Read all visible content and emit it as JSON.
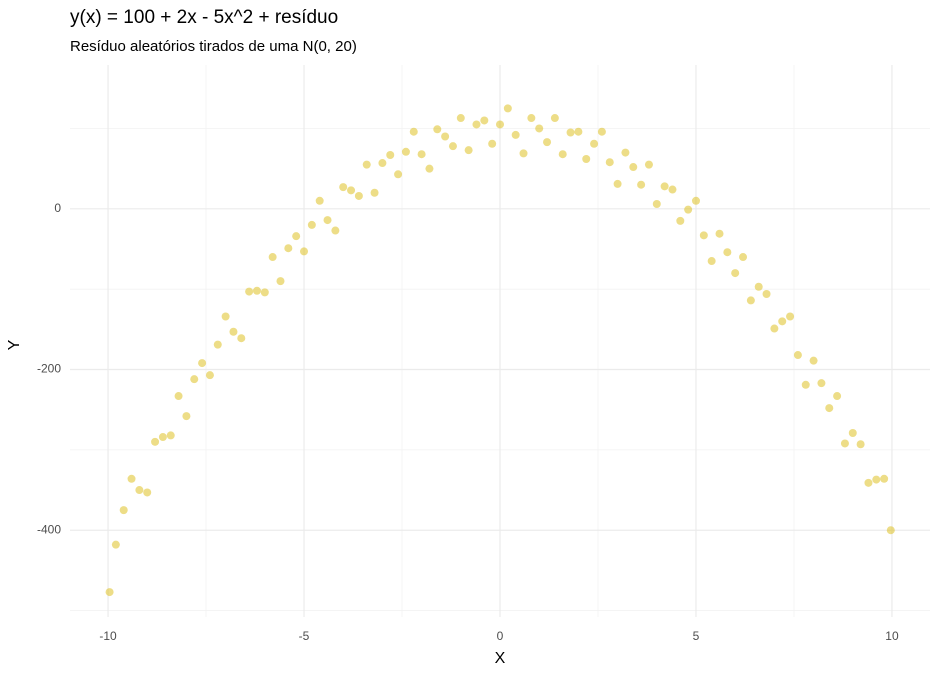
{
  "chart_data": {
    "type": "scatter",
    "title": "y(x) = 100 + 2x - 5x^2 + resíduo",
    "subtitle": "Resíduo aleatórios tirados de uma N(0, 20)",
    "x_label": "X",
    "y_label": "Y",
    "color": "#dbbb10",
    "xlim": [
      -10.97,
      10.97
    ],
    "ylim": [
      -508,
      179
    ],
    "xticks": [
      -10,
      -5,
      0,
      5,
      10
    ],
    "yticks": [
      -400,
      -200,
      0
    ],
    "x_minor_grid": [
      -7.5,
      -2.5,
      2.5,
      7.5
    ],
    "y_minor_grid": [
      -500,
      -300,
      -100,
      100
    ],
    "grid": true,
    "x": [
      -9.96,
      -9.8,
      -9.6,
      -9.4,
      -9.2,
      -9.0,
      -8.8,
      -8.6,
      -8.4,
      -8.2,
      -8.0,
      -7.8,
      -7.6,
      -7.4,
      -7.2,
      -7.0,
      -6.8,
      -6.6,
      -6.4,
      -6.2,
      -6.0,
      -5.8,
      -5.6,
      -5.4,
      -5.2,
      -5.0,
      -4.8,
      -4.6,
      -4.4,
      -4.2,
      -4.0,
      -3.8,
      -3.6,
      -3.4,
      -3.2,
      -3.0,
      -2.8,
      -2.6,
      -2.4,
      -2.2,
      -2.0,
      -1.8,
      -1.6,
      -1.4,
      -1.2,
      -1.0,
      -0.8,
      -0.6,
      -0.4,
      -0.2,
      0,
      0.2,
      0.4,
      0.6,
      0.8,
      1.0,
      1.2,
      1.4,
      1.6,
      1.8,
      2.0,
      2.2,
      2.4,
      2.6,
      2.8,
      3.0,
      3.2,
      3.4,
      3.6,
      3.8,
      4.0,
      4.2,
      4.4,
      4.6,
      4.8,
      5.0,
      5.2,
      5.4,
      5.6,
      5.8,
      6.0,
      6.2,
      6.4,
      6.6,
      6.8,
      7.0,
      7.2,
      7.4,
      7.6,
      7.8,
      8.0,
      8.2,
      8.4,
      8.6,
      8.8,
      9.0,
      9.2,
      9.4,
      9.6,
      9.8,
      9.97
    ],
    "values": [
      -477,
      -418,
      -375,
      -336,
      -350,
      -353,
      -290,
      -284,
      -282,
      -233,
      -258,
      -212,
      -192,
      -207,
      -169,
      -134,
      -153,
      -161,
      -103,
      -102,
      -104,
      -60,
      -90,
      -49,
      -34,
      -53,
      -20,
      10,
      -14,
      -27,
      27,
      23,
      16,
      55,
      20,
      57,
      67,
      43,
      71,
      96,
      68,
      50,
      99,
      90,
      78,
      113,
      73,
      105,
      110,
      81,
      105,
      125,
      92,
      69,
      113,
      100,
      83,
      113,
      68,
      95,
      96,
      62,
      81,
      96,
      58,
      31,
      70,
      52,
      30,
      55,
      6,
      28,
      24,
      -15,
      -1,
      10,
      -33,
      -65,
      -31,
      -54,
      -80,
      -60,
      -114,
      -97,
      -106,
      -149,
      -140,
      -134,
      -182,
      -219,
      -189,
      -217,
      -248,
      -233,
      -292,
      -279,
      -293,
      -341,
      -337,
      -336,
      -400
    ]
  }
}
